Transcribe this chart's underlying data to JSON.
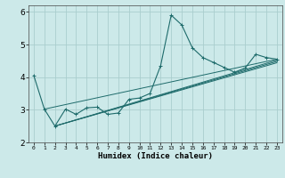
{
  "xlabel": "Humidex (Indice chaleur)",
  "xlim": [
    -0.5,
    23.5
  ],
  "ylim": [
    2,
    6.2
  ],
  "yticks": [
    2,
    3,
    4,
    5,
    6
  ],
  "xticks": [
    0,
    1,
    2,
    3,
    4,
    5,
    6,
    7,
    8,
    9,
    10,
    11,
    12,
    13,
    14,
    15,
    16,
    17,
    18,
    19,
    20,
    21,
    22,
    23
  ],
  "bg_color": "#cce9e9",
  "grid_color": "#aacece",
  "line_color": "#1e6b6b",
  "main_line": [
    [
      0,
      4.05
    ],
    [
      1,
      3.02
    ],
    [
      2,
      2.5
    ],
    [
      3,
      3.02
    ],
    [
      4,
      2.86
    ],
    [
      5,
      3.06
    ],
    [
      6,
      3.08
    ],
    [
      7,
      2.86
    ],
    [
      8,
      2.9
    ],
    [
      9,
      3.32
    ],
    [
      10,
      3.36
    ],
    [
      11,
      3.5
    ],
    [
      12,
      4.35
    ],
    [
      13,
      5.9
    ],
    [
      14,
      5.6
    ],
    [
      15,
      4.9
    ],
    [
      16,
      4.6
    ],
    [
      17,
      4.45
    ],
    [
      18,
      4.3
    ],
    [
      19,
      4.15
    ],
    [
      20,
      4.28
    ],
    [
      21,
      4.7
    ],
    [
      22,
      4.6
    ],
    [
      23,
      4.55
    ]
  ],
  "trend_lines": [
    [
      [
        1,
        3.02
      ],
      [
        23,
        4.55
      ]
    ],
    [
      [
        2,
        2.5
      ],
      [
        23,
        4.52
      ]
    ],
    [
      [
        2,
        2.5
      ],
      [
        23,
        4.48
      ]
    ],
    [
      [
        2,
        2.5
      ],
      [
        23,
        4.44
      ]
    ]
  ]
}
